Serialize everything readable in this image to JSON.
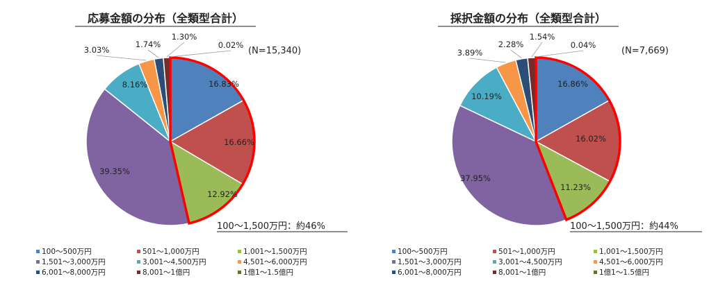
{
  "chart_data": [
    {
      "type": "pie",
      "title": "応募金額の分布（全類型合計）",
      "n_label": "(N=15,340)",
      "summary": "100～1,500万円：約46%",
      "categories": [
        "100～500万円",
        "501～1,000万円",
        "1,001～1,500万円",
        "1,501～3,000万円",
        "3,001～4,500万円",
        "4,501～6,000万円",
        "6,001～8,000万円",
        "8,001～1億円",
        "1億1～1.5億円"
      ],
      "values": [
        16.83,
        16.66,
        12.92,
        39.35,
        8.16,
        3.03,
        1.74,
        1.3,
        0.02
      ],
      "value_labels": [
        "16.83%",
        "16.66%",
        "12.92%",
        "39.35%",
        "8.16%",
        "3.03%",
        "1.74%",
        "1.30%",
        "0.02%"
      ],
      "highlight_range": [
        0,
        2
      ],
      "highlight_color": "#ff0000"
    },
    {
      "type": "pie",
      "title": "採択金額の分布（全類型合計）",
      "n_label": "(N=7,669)",
      "summary": "100～1,500万円：約44%",
      "categories": [
        "100～500万円",
        "501～1,000万円",
        "1,001～1,500万円",
        "1,501～3,000万円",
        "3,001～4,500万円",
        "4,501～6,000万円",
        "6,001～8,000万円",
        "8,001～1億円",
        "1億1～1.5億円"
      ],
      "values": [
        16.86,
        16.02,
        11.23,
        37.95,
        10.19,
        3.89,
        2.28,
        1.54,
        0.04
      ],
      "value_labels": [
        "16.86%",
        "16.02%",
        "11.23%",
        "37.95%",
        "10.19%",
        "3.89%",
        "2.28%",
        "1.54%",
        "0.04%"
      ],
      "highlight_range": [
        0,
        2
      ],
      "highlight_color": "#ff0000"
    }
  ],
  "colors": [
    "#4f81bd",
    "#c0504d",
    "#9bbb59",
    "#8064a2",
    "#4bacc6",
    "#f79646",
    "#2c4d75",
    "#772c2a",
    "#5f7530"
  ],
  "legend_placement": "bottom",
  "label_placement": "inside-and-outside"
}
